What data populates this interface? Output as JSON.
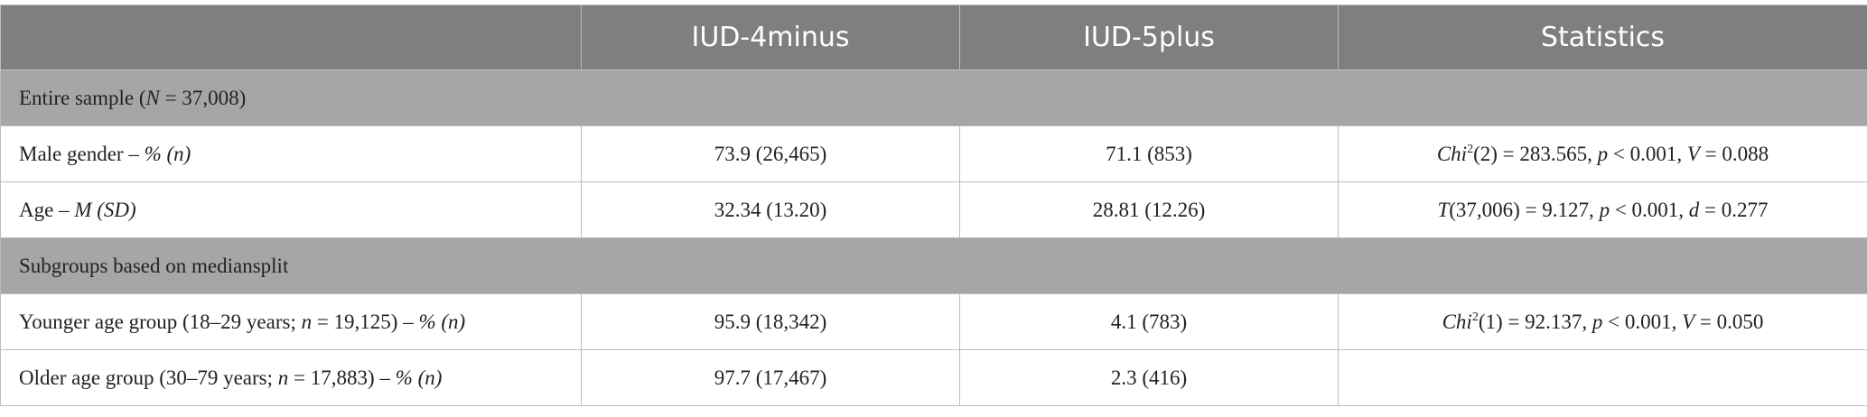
{
  "table": {
    "header": [
      "IUD-4minus",
      "IUD-5plus",
      "Statistics"
    ],
    "sections": [
      {
        "title": [
          "Entire sample (",
          "N",
          " = 37,008)"
        ],
        "rows": [
          {
            "label": [
              "Male gender – ",
              "% (n)"
            ],
            "c1": "73.9 (26,465)",
            "c2": "71.1 (853)",
            "stat": [
              "Chi",
              "2",
              "(2) = 283.565, ",
              "p",
              " < 0.001, ",
              "V",
              " = 0.088"
            ]
          },
          {
            "label": [
              "Age – ",
              "M (SD)"
            ],
            "c1": "32.34 (13.20)",
            "c2": "28.81 (12.26)",
            "stat": [
              "T",
              "(37,006) = 9.127, ",
              "p",
              " < 0.001, ",
              "d",
              " = 0.277"
            ]
          }
        ]
      },
      {
        "title": [
          "Subgroups based on mediansplit"
        ],
        "rows": [
          {
            "label": [
              "Younger age group (18–29 years; ",
              "n",
              " = 19,125) – ",
              "% (n)"
            ],
            "c1": "95.9 (18,342)",
            "c2": "4.1 (783)",
            "stat": [
              "Chi",
              "2",
              "(1) = 92.137, ",
              "p",
              " < 0.001, ",
              "V",
              " = 0.050"
            ]
          },
          {
            "label": [
              "Older age group (30–79 years; ",
              "n",
              " = 17,883) – ",
              "% (n)"
            ],
            "c1": "97.7 (17,467)",
            "c2": "2.3 (416)"
          }
        ]
      }
    ]
  }
}
